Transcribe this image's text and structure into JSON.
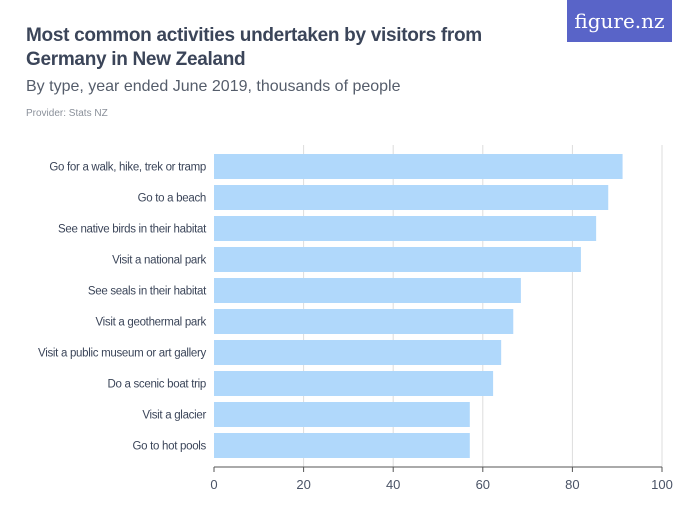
{
  "title": "Most common activities undertaken by visitors from Germany in New Zealand",
  "subtitle": "By type, year ended June 2019, thousands of people",
  "provider": "Provider: Stats NZ",
  "logo": "figure.nz",
  "colors": {
    "bar": "#b0d8fb",
    "grid": "#dddddd",
    "axis": "#555555",
    "logo_bg": "#5964c8"
  },
  "chart_data": {
    "type": "bar",
    "orientation": "horizontal",
    "categories": [
      "Go for a walk, hike, trek or tramp",
      "Go to a beach",
      "See native birds in their habitat",
      "Visit a national park",
      "See seals in their habitat",
      "Visit a geothermal park",
      "Visit a public museum or art gallery",
      "Do a scenic boat trip",
      "Visit a glacier",
      "Go to hot pools"
    ],
    "values": [
      91.2,
      88.0,
      85.3,
      81.9,
      68.5,
      66.8,
      64.1,
      62.3,
      57.1,
      57.1
    ],
    "xlim": [
      0,
      100
    ],
    "xticks": [
      "0",
      "20",
      "40",
      "60",
      "80",
      "100"
    ],
    "grid": true
  }
}
